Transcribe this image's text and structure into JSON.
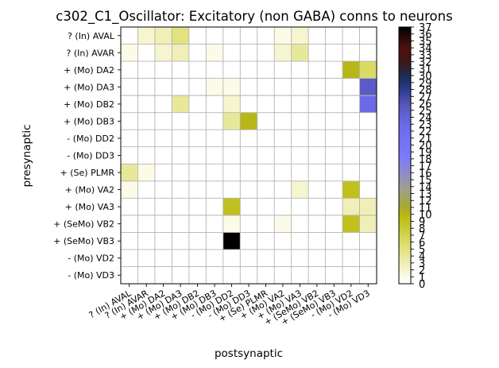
{
  "chart_data": {
    "type": "heatmap",
    "title": "c302_C1_Oscillator: Excitatory (non GABA) conns to neurons",
    "xlabel": "postsynaptic",
    "ylabel": "presynaptic",
    "rows": [
      "? (In) AVAL",
      "? (In) AVAR",
      "+ (Mo) DA2",
      "+ (Mo) DA3",
      "+ (Mo) DB2",
      "+ (Mo) DB3",
      "- (Mo) DD2",
      "- (Mo) DD3",
      "+ (Se) PLMR",
      "+ (Mo) VA2",
      "+ (Mo) VA3",
      "+ (SeMo) VB2",
      "+ (SeMo) VB3",
      "- (Mo) VD2",
      "- (Mo) VD3"
    ],
    "columns": [
      "? (In) AVAL",
      "? (In) AVAR",
      "+ (Mo) DA2",
      "+ (Mo) DA3",
      "+ (Mo) DB2",
      "+ (Mo) DB3",
      "- (Mo) DD2",
      "- (Mo) DD3",
      "+ (Se) PLMR",
      "+ (Mo) VA2",
      "+ (Mo) VA3",
      "+ (SeMo) VB2",
      "+ (SeMo) VB3",
      "- (Mo) VD2",
      "- (Mo) VD3"
    ],
    "cells": [
      {
        "row": "? (In) AVAL",
        "col": "? (In) AVAR",
        "value": 2
      },
      {
        "row": "? (In) AVAL",
        "col": "+ (Mo) DA2",
        "value": 3
      },
      {
        "row": "? (In) AVAL",
        "col": "+ (Mo) DA3",
        "value": 5
      },
      {
        "row": "? (In) AVAL",
        "col": "+ (Mo) VA2",
        "value": 1
      },
      {
        "row": "? (In) AVAL",
        "col": "+ (Mo) VA3",
        "value": 2
      },
      {
        "row": "? (In) AVAR",
        "col": "? (In) AVAL",
        "value": 1
      },
      {
        "row": "? (In) AVAR",
        "col": "+ (Mo) DA2",
        "value": 2
      },
      {
        "row": "? (In) AVAR",
        "col": "+ (Mo) DA3",
        "value": 3
      },
      {
        "row": "? (In) AVAR",
        "col": "+ (Mo) DB3",
        "value": 1
      },
      {
        "row": "? (In) AVAR",
        "col": "+ (Mo) VA2",
        "value": 2
      },
      {
        "row": "? (In) AVAR",
        "col": "+ (Mo) VA3",
        "value": 4
      },
      {
        "row": "+ (Mo) DA2",
        "col": "- (Mo) VD2",
        "value": 10
      },
      {
        "row": "+ (Mo) DA2",
        "col": "- (Mo) VD3",
        "value": 6
      },
      {
        "row": "+ (Mo) DA3",
        "col": "+ (Mo) DB3",
        "value": 1
      },
      {
        "row": "+ (Mo) DA3",
        "col": "- (Mo) DD2",
        "value": 1
      },
      {
        "row": "+ (Mo) DA3",
        "col": "- (Mo) VD3",
        "value": 25
      },
      {
        "row": "+ (Mo) DB2",
        "col": "+ (Mo) DA3",
        "value": 4
      },
      {
        "row": "+ (Mo) DB2",
        "col": "- (Mo) DD2",
        "value": 2
      },
      {
        "row": "+ (Mo) DB2",
        "col": "- (Mo) VD3",
        "value": 23
      },
      {
        "row": "+ (Mo) DB3",
        "col": "- (Mo) DD2",
        "value": 4
      },
      {
        "row": "+ (Mo) DB3",
        "col": "- (Mo) DD3",
        "value": 10
      },
      {
        "row": "+ (Se) PLMR",
        "col": "? (In) AVAL",
        "value": 4
      },
      {
        "row": "+ (Se) PLMR",
        "col": "? (In) AVAR",
        "value": 1
      },
      {
        "row": "+ (Mo) VA2",
        "col": "? (In) AVAL",
        "value": 1
      },
      {
        "row": "+ (Mo) VA2",
        "col": "+ (Mo) VA3",
        "value": 2
      },
      {
        "row": "+ (Mo) VA2",
        "col": "- (Mo) VD2",
        "value": 9
      },
      {
        "row": "+ (Mo) VA3",
        "col": "- (Mo) DD2",
        "value": 9
      },
      {
        "row": "+ (Mo) VA3",
        "col": "- (Mo) VD2",
        "value": 3
      },
      {
        "row": "+ (Mo) VA3",
        "col": "- (Mo) VD3",
        "value": 3
      },
      {
        "row": "+ (SeMo) VB2",
        "col": "- (Mo) DD2",
        "value": 1
      },
      {
        "row": "+ (SeMo) VB2",
        "col": "+ (Mo) VA2",
        "value": 1
      },
      {
        "row": "+ (SeMo) VB2",
        "col": "- (Mo) VD2",
        "value": 9
      },
      {
        "row": "+ (SeMo) VB2",
        "col": "- (Mo) VD3",
        "value": 3
      },
      {
        "row": "+ (SeMo) VB3",
        "col": "- (Mo) DD2",
        "value": 37
      }
    ],
    "colorbar": {
      "range": [
        0,
        37
      ],
      "colormap": "gist_stern_r-like",
      "ticks": [
        0,
        1,
        2,
        3,
        4,
        5,
        6,
        7,
        8,
        9,
        10,
        11,
        12,
        13,
        14,
        15,
        16,
        17,
        18,
        19,
        20,
        21,
        22,
        23,
        24,
        25,
        26,
        27,
        28,
        29,
        30,
        31,
        32,
        33,
        34,
        35,
        36,
        37
      ]
    },
    "grid": true,
    "colors": {
      "gridline": "#b3b3b3",
      "zero": "#ffffff",
      "max": "#000000"
    }
  }
}
